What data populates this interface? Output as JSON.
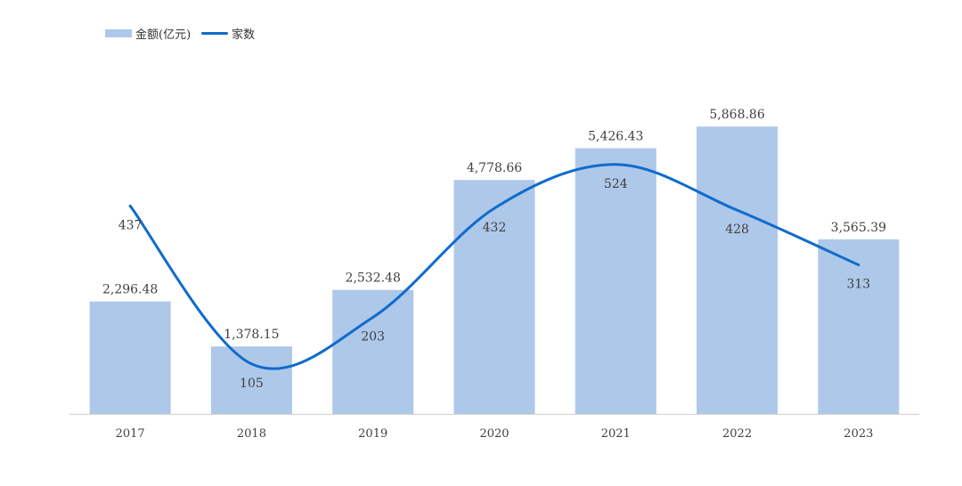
{
  "legend": {
    "bar_label": "金额(亿元)",
    "line_label": "家数"
  },
  "colors": {
    "bar": "#aec8e9",
    "line": "#0f6ccc",
    "axis": "#d0d0d0"
  },
  "chart_data": {
    "type": "bar",
    "categories": [
      "2017",
      "2018",
      "2019",
      "2020",
      "2021",
      "2022",
      "2023"
    ],
    "series": [
      {
        "name": "金额(亿元)",
        "kind": "bar",
        "values": [
          2296.48,
          1378.15,
          2532.48,
          4778.66,
          5426.43,
          5868.86,
          3565.39
        ],
        "labels": [
          "2,296.48",
          "1,378.15",
          "2,532.48",
          "4,778.66",
          "5,426.43",
          "5,868.86",
          "3,565.39"
        ]
      },
      {
        "name": "家数",
        "kind": "line",
        "smooth": true,
        "values": [
          437,
          105,
          203,
          432,
          524,
          428,
          313
        ],
        "labels": [
          "437",
          "105",
          "203",
          "432",
          "524",
          "428",
          "313"
        ]
      }
    ],
    "title": "",
    "xlabel": "",
    "ylabel": "",
    "ylim": [
      0,
      7000
    ],
    "y2lim": [
      0,
      720
    ],
    "grid": false,
    "legend_position": "top-left"
  }
}
